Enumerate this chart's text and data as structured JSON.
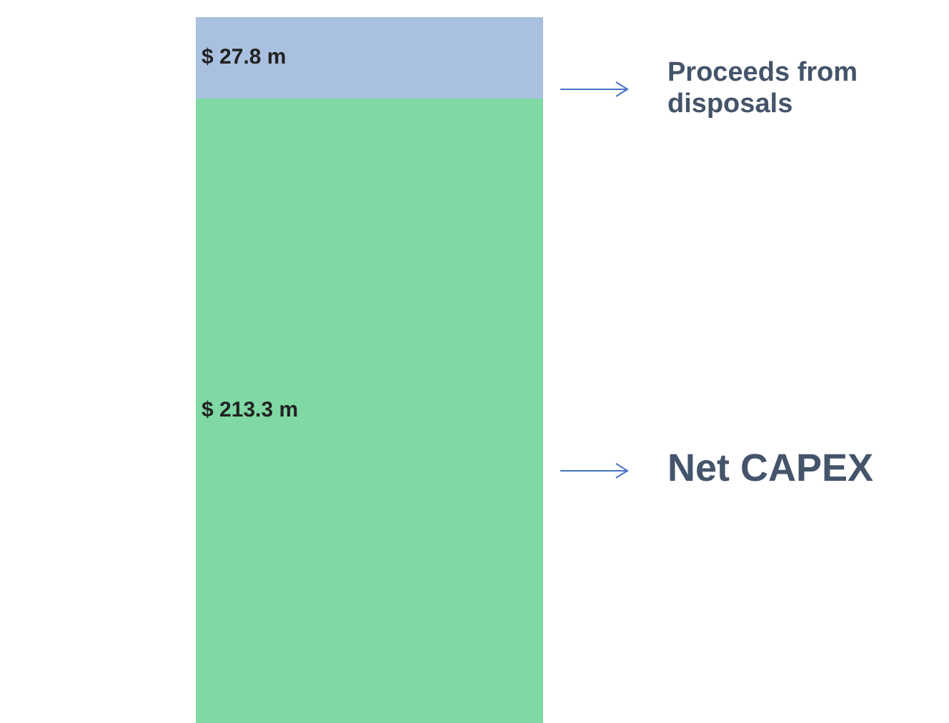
{
  "chart_data": {
    "type": "bar",
    "stacked": true,
    "categories": [
      null
    ],
    "series": [
      {
        "name": "Net CAPEX",
        "color": "#80d8a4",
        "values": [
          213.3
        ],
        "value_labels": [
          "$ 213.3 m"
        ]
      },
      {
        "name": "Proceeds from disposals",
        "color": "#a9c0e0",
        "values": [
          27.8
        ],
        "value_labels": [
          "$ 27.8 m"
        ]
      }
    ]
  }
}
